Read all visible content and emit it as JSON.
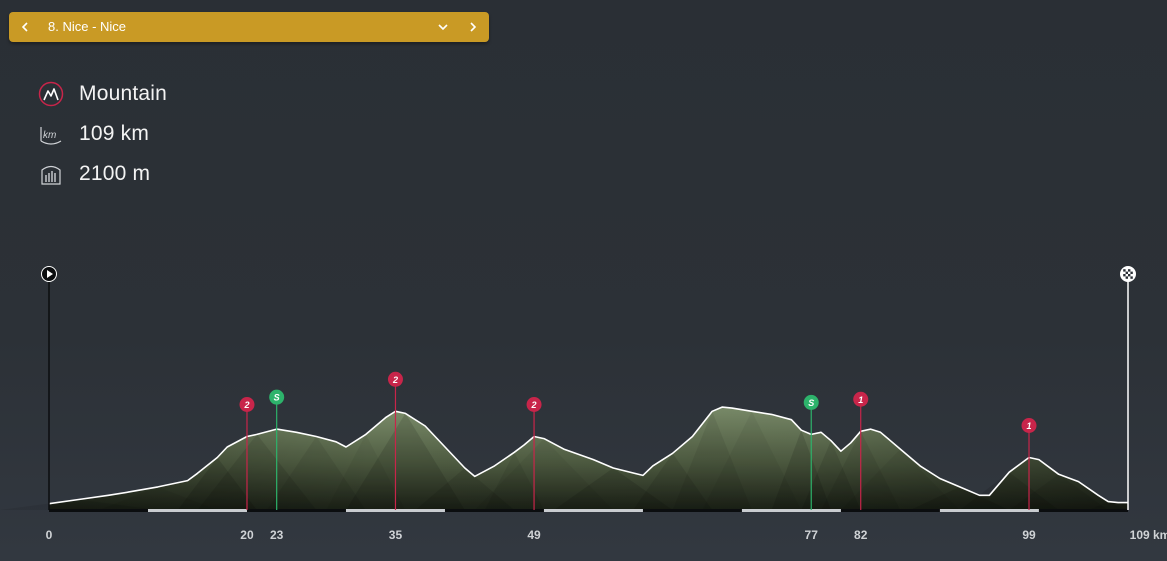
{
  "stage_selector": {
    "title": "8. Nice - Nice",
    "prev_icon": "chevron-left-icon",
    "next_icon": "chevron-right-icon",
    "dropdown_icon": "chevron-down-icon",
    "color": "#c99a25"
  },
  "stage_info": {
    "type": "Mountain",
    "distance": "109 km",
    "elevation": "2100 m"
  },
  "profile": {
    "total_km": 109,
    "start_icon": "play-icon",
    "finish_icon": "checkered-flag-icon",
    "km_labels": [
      "0",
      "20",
      "23",
      "35",
      "49",
      "77",
      "82",
      "99",
      "109 km"
    ],
    "km_values": [
      0,
      20,
      23,
      35,
      49,
      77,
      82,
      99,
      109
    ],
    "markers": [
      {
        "km": 20,
        "type": "climb",
        "label": "2",
        "color": "#c8254a"
      },
      {
        "km": 23,
        "type": "sprint",
        "label": "S",
        "color": "#2db36b"
      },
      {
        "km": 35,
        "type": "climb",
        "label": "2",
        "color": "#c8254a"
      },
      {
        "km": 49,
        "type": "climb",
        "label": "2",
        "color": "#c8254a"
      },
      {
        "km": 77,
        "type": "sprint",
        "label": "S",
        "color": "#2db36b"
      },
      {
        "km": 82,
        "type": "climb",
        "label": "1",
        "color": "#c8254a"
      },
      {
        "km": 99,
        "type": "climb",
        "label": "1",
        "color": "#c8254a"
      }
    ],
    "elevation_relative": [
      [
        0,
        0.06
      ],
      [
        3,
        0.1
      ],
      [
        6,
        0.14
      ],
      [
        8,
        0.17
      ],
      [
        11,
        0.22
      ],
      [
        14,
        0.28
      ],
      [
        15,
        0.35
      ],
      [
        17,
        0.5
      ],
      [
        18,
        0.6
      ],
      [
        20,
        0.7
      ],
      [
        21,
        0.72
      ],
      [
        23,
        0.77
      ],
      [
        25,
        0.74
      ],
      [
        27,
        0.7
      ],
      [
        29,
        0.65
      ],
      [
        30,
        0.6
      ],
      [
        32,
        0.72
      ],
      [
        34,
        0.88
      ],
      [
        35,
        0.94
      ],
      [
        36,
        0.92
      ],
      [
        38,
        0.8
      ],
      [
        40,
        0.6
      ],
      [
        42,
        0.4
      ],
      [
        43,
        0.32
      ],
      [
        45,
        0.42
      ],
      [
        47,
        0.55
      ],
      [
        48,
        0.62
      ],
      [
        49,
        0.7
      ],
      [
        50,
        0.68
      ],
      [
        52,
        0.58
      ],
      [
        55,
        0.48
      ],
      [
        57,
        0.4
      ],
      [
        60,
        0.33
      ],
      [
        61,
        0.42
      ],
      [
        63,
        0.54
      ],
      [
        65,
        0.7
      ],
      [
        66,
        0.82
      ],
      [
        67,
        0.94
      ],
      [
        68,
        0.98
      ],
      [
        69,
        0.97
      ],
      [
        71,
        0.94
      ],
      [
        73,
        0.91
      ],
      [
        75,
        0.86
      ],
      [
        76,
        0.76
      ],
      [
        77,
        0.72
      ],
      [
        78,
        0.74
      ],
      [
        79,
        0.66
      ],
      [
        80,
        0.56
      ],
      [
        81,
        0.64
      ],
      [
        82,
        0.75
      ],
      [
        83,
        0.77
      ],
      [
        84,
        0.74
      ],
      [
        86,
        0.58
      ],
      [
        88,
        0.42
      ],
      [
        90,
        0.3
      ],
      [
        92,
        0.22
      ],
      [
        94,
        0.14
      ],
      [
        95,
        0.14
      ],
      [
        97,
        0.36
      ],
      [
        99,
        0.5
      ],
      [
        100,
        0.48
      ],
      [
        102,
        0.34
      ],
      [
        104,
        0.27
      ],
      [
        106,
        0.14
      ],
      [
        107,
        0.08
      ],
      [
        108,
        0.07
      ],
      [
        109,
        0.07
      ]
    ]
  }
}
